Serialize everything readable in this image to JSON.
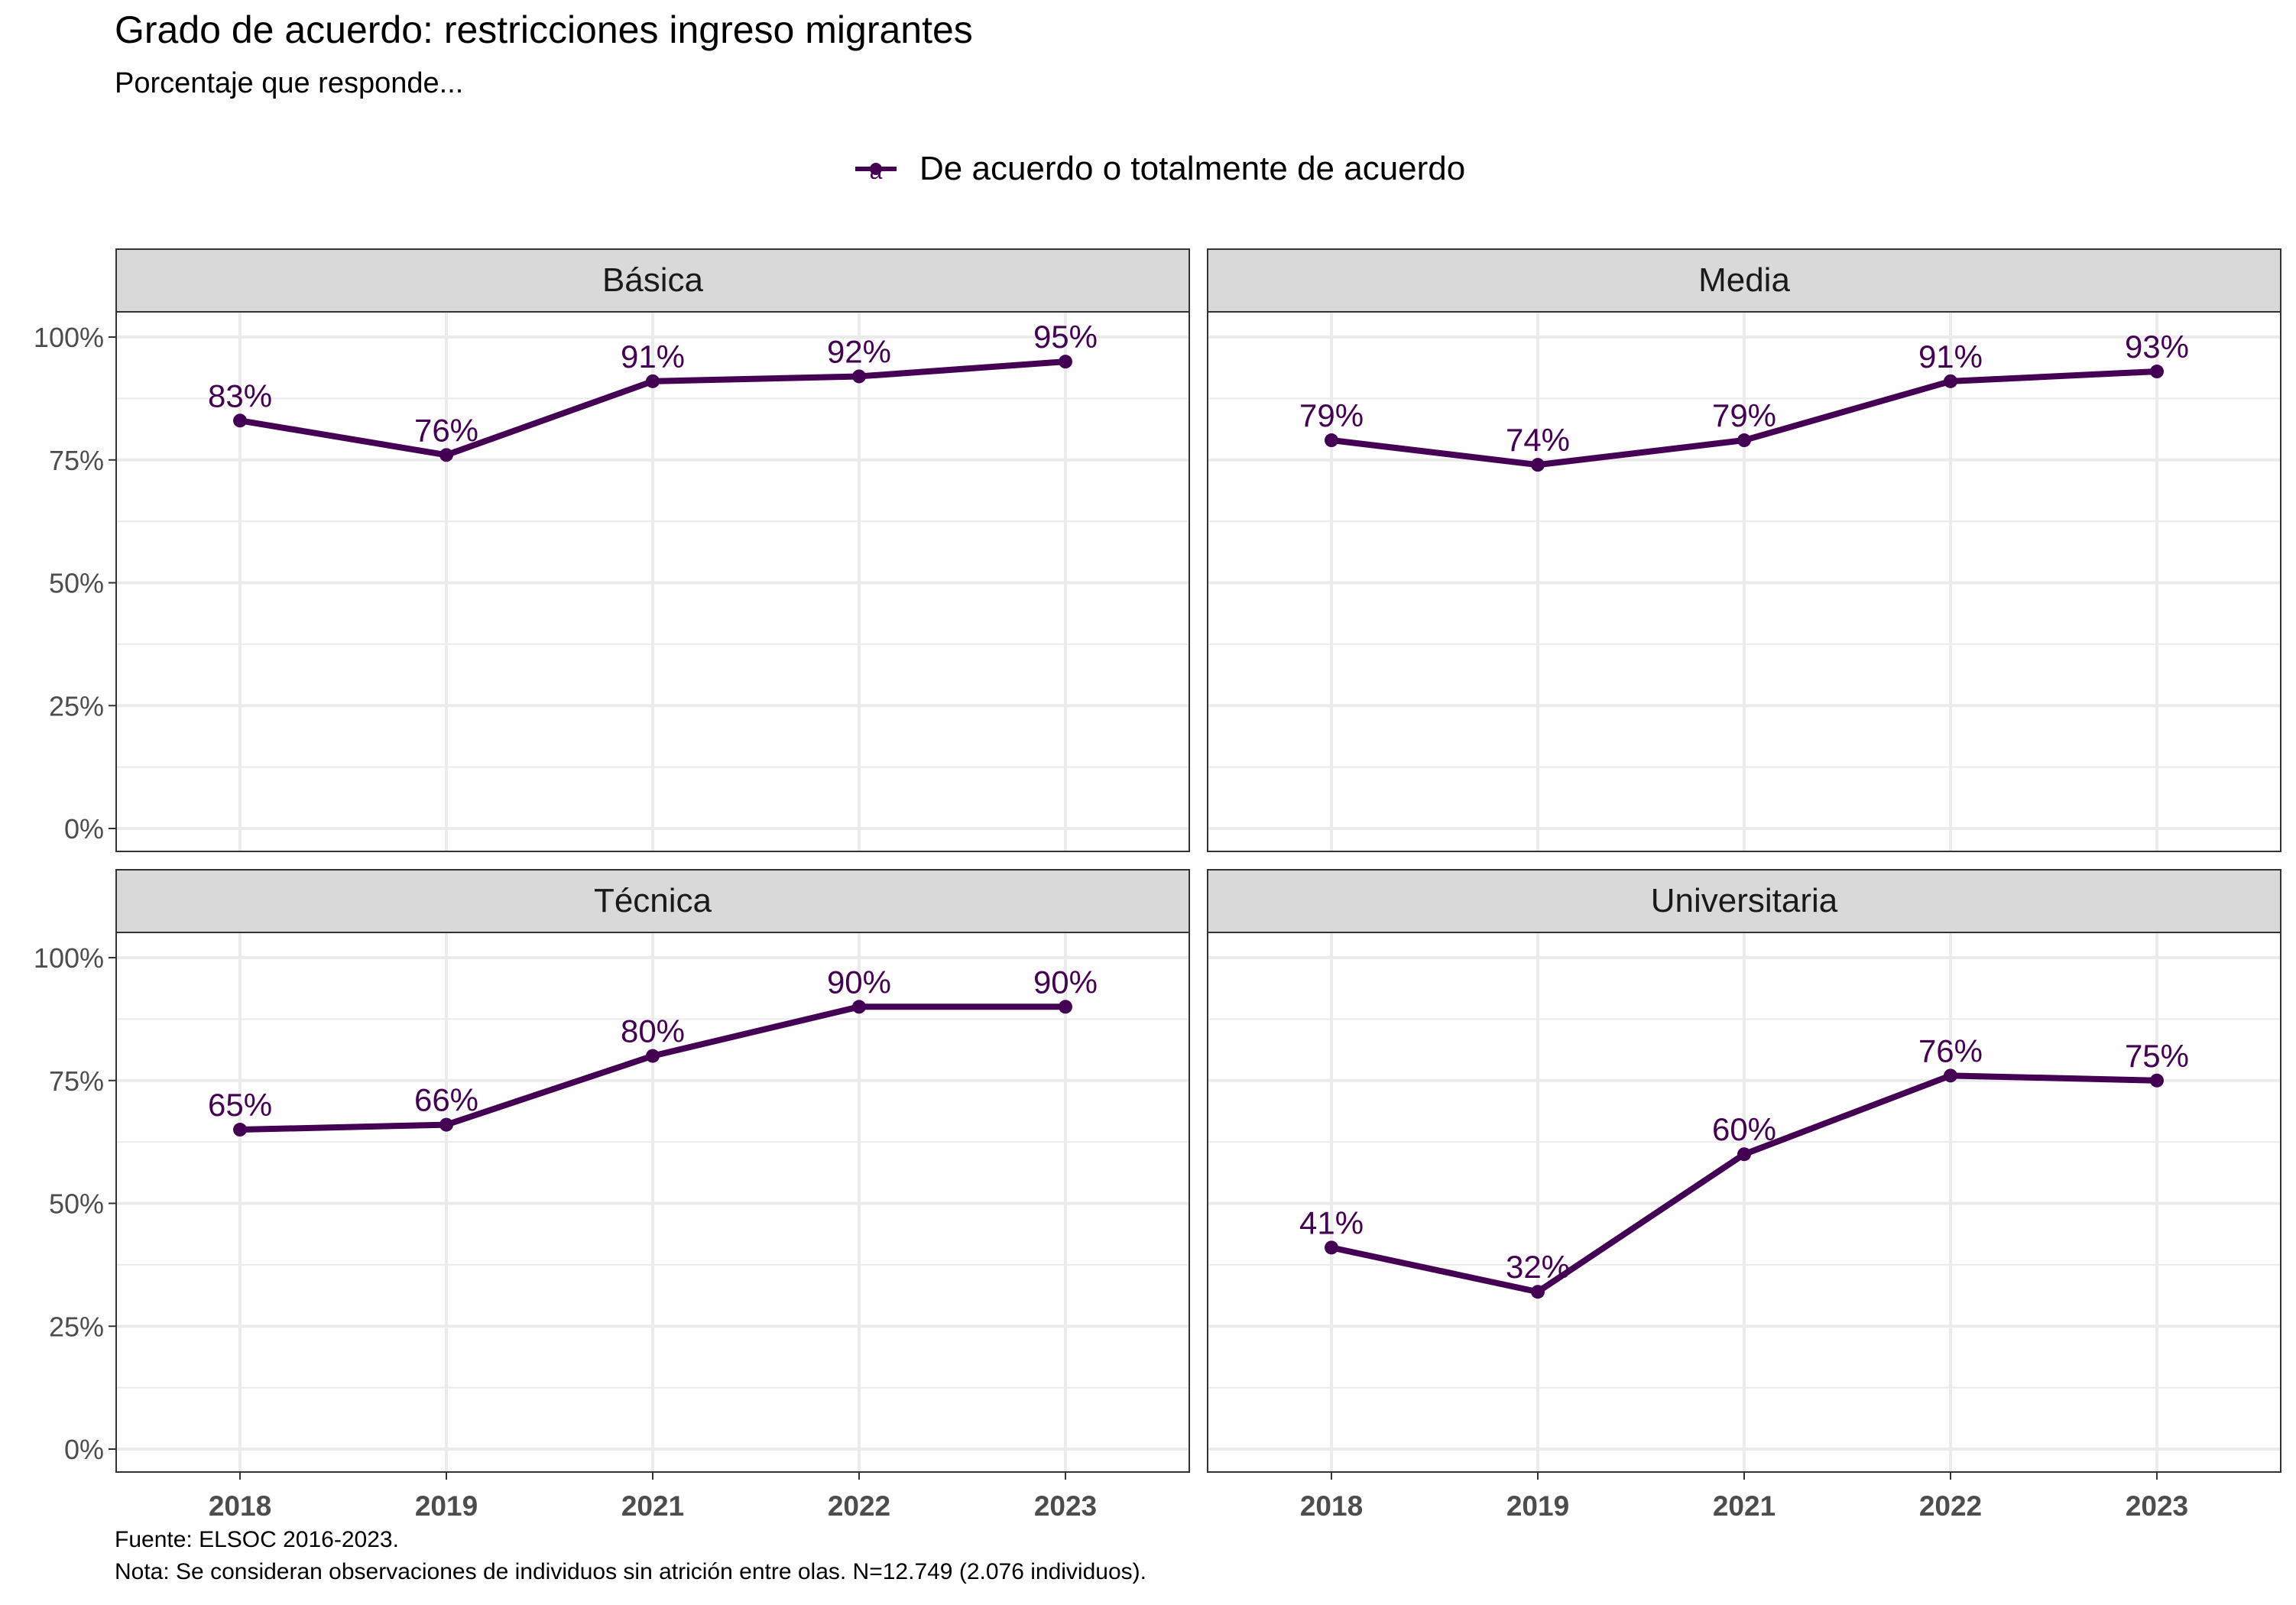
{
  "header": {
    "title": "Grado de acuerdo: restricciones ingreso migrantes",
    "subtitle": "Porcentaje que responde..."
  },
  "legend": {
    "label": "De acuerdo o totalmente de acuerdo",
    "key_glyph": "a",
    "position": "top"
  },
  "colors": {
    "series": "#440154",
    "strip_bg": "#d9d9d9",
    "grid": "#ebebeb",
    "panel_border": "#333333"
  },
  "chart_data": {
    "type": "line",
    "facet_by": "Nivel educacional",
    "x": [
      "2018",
      "2019",
      "2021",
      "2022",
      "2023"
    ],
    "ylim": [
      0,
      100
    ],
    "y_ticks": [
      "0%",
      "25%",
      "50%",
      "75%",
      "100%"
    ],
    "grid": true,
    "series_name": "De acuerdo o totalmente de acuerdo",
    "facets": [
      {
        "name": "Básica",
        "values": [
          83,
          76,
          91,
          92,
          95
        ],
        "labels": [
          "83%",
          "76%",
          "91%",
          "92%",
          "95%"
        ]
      },
      {
        "name": "Media",
        "values": [
          79,
          74,
          79,
          91,
          93
        ],
        "labels": [
          "79%",
          "74%",
          "79%",
          "91%",
          "93%"
        ]
      },
      {
        "name": "Técnica",
        "values": [
          65,
          66,
          80,
          90,
          90
        ],
        "labels": [
          "65%",
          "66%",
          "80%",
          "90%",
          "90%"
        ]
      },
      {
        "name": "Universitaria",
        "values": [
          41,
          32,
          60,
          76,
          75
        ],
        "labels": [
          "41%",
          "32%",
          "60%",
          "76%",
          "75%"
        ]
      }
    ]
  },
  "footer": {
    "source": "Fuente: ELSOC 2016-2023.",
    "note": "Nota: Se consideran observaciones de individuos sin atrición entre olas. N=12.749 (2.076 individuos)."
  }
}
